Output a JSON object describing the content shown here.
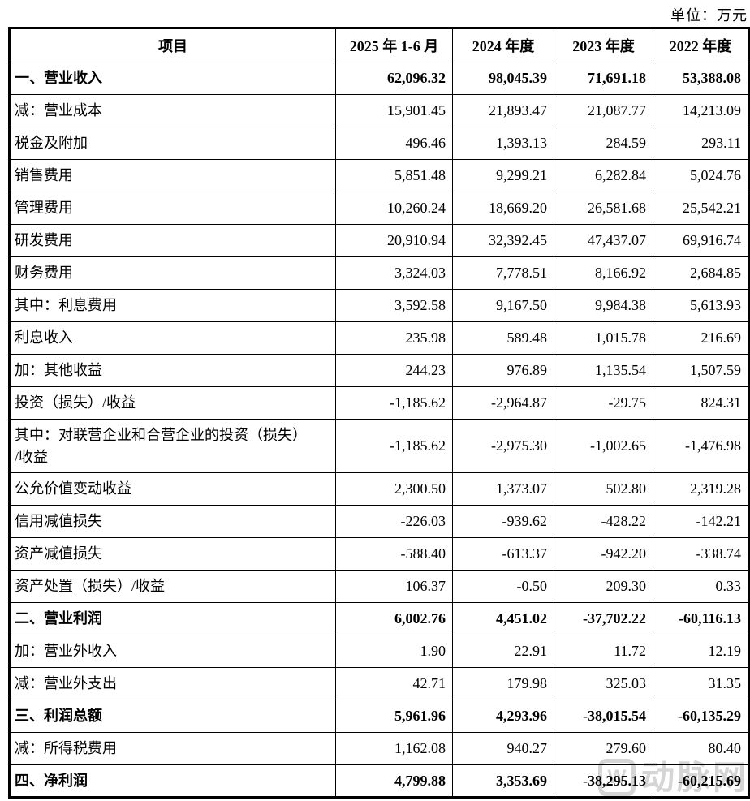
{
  "unit_label": "单位：万元",
  "watermark": {
    "icon_glyph": "W",
    "text": "动脉网",
    "color": "#c8c8c8"
  },
  "table": {
    "columns": [
      "项目",
      "2025 年 1-6 月",
      "2024 年度",
      "2023 年度",
      "2022 年度"
    ],
    "rows": [
      {
        "label": "一、营业收入",
        "bold": true,
        "tall": false,
        "values": [
          "62,096.32",
          "98,045.39",
          "71,691.18",
          "53,388.08"
        ]
      },
      {
        "label": "减：营业成本",
        "bold": false,
        "tall": false,
        "values": [
          "15,901.45",
          "21,893.47",
          "21,087.77",
          "14,213.09"
        ]
      },
      {
        "label": "税金及附加",
        "bold": false,
        "tall": false,
        "values": [
          "496.46",
          "1,393.13",
          "284.59",
          "293.11"
        ]
      },
      {
        "label": "销售费用",
        "bold": false,
        "tall": false,
        "values": [
          "5,851.48",
          "9,299.21",
          "6,282.84",
          "5,024.76"
        ]
      },
      {
        "label": "管理费用",
        "bold": false,
        "tall": false,
        "values": [
          "10,260.24",
          "18,669.20",
          "26,581.68",
          "25,542.21"
        ]
      },
      {
        "label": "研发费用",
        "bold": false,
        "tall": false,
        "values": [
          "20,910.94",
          "32,392.45",
          "47,437.07",
          "69,916.74"
        ]
      },
      {
        "label": "财务费用",
        "bold": false,
        "tall": false,
        "values": [
          "3,324.03",
          "7,778.51",
          "8,166.92",
          "2,684.85"
        ]
      },
      {
        "label": "其中：利息费用",
        "bold": false,
        "tall": false,
        "values": [
          "3,592.58",
          "9,167.50",
          "9,984.38",
          "5,613.93"
        ]
      },
      {
        "label": "利息收入",
        "bold": false,
        "tall": false,
        "values": [
          "235.98",
          "589.48",
          "1,015.78",
          "216.69"
        ]
      },
      {
        "label": "加：其他收益",
        "bold": false,
        "tall": false,
        "values": [
          "244.23",
          "976.89",
          "1,135.54",
          "1,507.59"
        ]
      },
      {
        "label": "投资（损失）/收益",
        "bold": false,
        "tall": false,
        "values": [
          "-1,185.62",
          "-2,964.87",
          "-29.75",
          "824.31"
        ]
      },
      {
        "label": "其中：对联营企业和合营企业的投资（损失）\n/收益",
        "bold": false,
        "tall": true,
        "values": [
          "-1,185.62",
          "-2,975.30",
          "-1,002.65",
          "-1,476.98"
        ]
      },
      {
        "label": "公允价值变动收益",
        "bold": false,
        "tall": false,
        "values": [
          "2,300.50",
          "1,373.07",
          "502.80",
          "2,319.28"
        ]
      },
      {
        "label": "信用减值损失",
        "bold": false,
        "tall": false,
        "values": [
          "-226.03",
          "-939.62",
          "-428.22",
          "-142.21"
        ]
      },
      {
        "label": "资产减值损失",
        "bold": false,
        "tall": false,
        "values": [
          "-588.40",
          "-613.37",
          "-942.20",
          "-338.74"
        ]
      },
      {
        "label": "资产处置（损失）/收益",
        "bold": false,
        "tall": false,
        "values": [
          "106.37",
          "-0.50",
          "209.30",
          "0.33"
        ]
      },
      {
        "label": "二、营业利润",
        "bold": true,
        "tall": false,
        "values": [
          "6,002.76",
          "4,451.02",
          "-37,702.22",
          "-60,116.13"
        ]
      },
      {
        "label": "加：营业外收入",
        "bold": false,
        "tall": false,
        "values": [
          "1.90",
          "22.91",
          "11.72",
          "12.19"
        ]
      },
      {
        "label": "减：营业外支出",
        "bold": false,
        "tall": false,
        "values": [
          "42.71",
          "179.98",
          "325.03",
          "31.35"
        ]
      },
      {
        "label": "三、利润总额",
        "bold": true,
        "tall": false,
        "values": [
          "5,961.96",
          "4,293.96",
          "-38,015.54",
          "-60,135.29"
        ]
      },
      {
        "label": "减：所得税费用",
        "bold": false,
        "tall": false,
        "values": [
          "1,162.08",
          "940.27",
          "279.60",
          "80.40"
        ]
      },
      {
        "label": "四、净利润",
        "bold": true,
        "tall": false,
        "values": [
          "4,799.88",
          "3,353.69",
          "-38,295.13",
          "-60,215.69"
        ]
      }
    ]
  }
}
